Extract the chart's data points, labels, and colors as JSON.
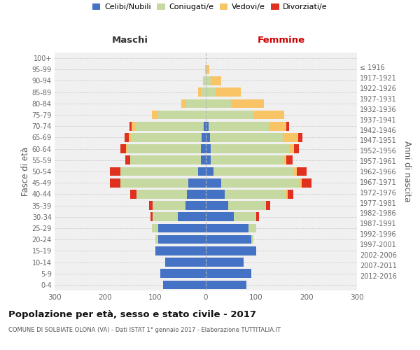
{
  "age_groups": [
    "0-4",
    "5-9",
    "10-14",
    "15-19",
    "20-24",
    "25-29",
    "30-34",
    "35-39",
    "40-44",
    "45-49",
    "50-54",
    "55-59",
    "60-64",
    "65-69",
    "70-74",
    "75-79",
    "80-84",
    "85-89",
    "90-94",
    "95-99",
    "100+"
  ],
  "birth_years": [
    "2012-2016",
    "2007-2011",
    "2002-2006",
    "1997-2001",
    "1992-1996",
    "1987-1991",
    "1982-1986",
    "1977-1981",
    "1972-1976",
    "1967-1971",
    "1962-1966",
    "1957-1961",
    "1952-1956",
    "1947-1951",
    "1942-1946",
    "1937-1941",
    "1932-1936",
    "1927-1931",
    "1922-1926",
    "1917-1921",
    "≤ 1916"
  ],
  "males": {
    "celibi": [
      85,
      90,
      80,
      100,
      95,
      95,
      55,
      40,
      38,
      35,
      15,
      10,
      10,
      8,
      4,
      0,
      0,
      0,
      0,
      0,
      0
    ],
    "coniugati": [
      0,
      0,
      0,
      0,
      5,
      12,
      50,
      65,
      100,
      135,
      155,
      140,
      145,
      140,
      135,
      95,
      40,
      10,
      5,
      2,
      0
    ],
    "vedovi": [
      0,
      0,
      0,
      0,
      0,
      0,
      0,
      0,
      0,
      0,
      0,
      0,
      3,
      5,
      8,
      12,
      8,
      5,
      0,
      0,
      0
    ],
    "divorziati": [
      0,
      0,
      0,
      0,
      0,
      0,
      5,
      8,
      12,
      20,
      20,
      10,
      12,
      8,
      5,
      0,
      0,
      0,
      0,
      0,
      0
    ]
  },
  "females": {
    "nubili": [
      80,
      90,
      75,
      100,
      90,
      85,
      55,
      45,
      38,
      30,
      15,
      10,
      10,
      8,
      5,
      0,
      0,
      0,
      0,
      0,
      0
    ],
    "coniugate": [
      0,
      0,
      0,
      0,
      5,
      15,
      45,
      75,
      120,
      155,
      160,
      145,
      155,
      145,
      120,
      95,
      50,
      20,
      10,
      2,
      0
    ],
    "vedove": [
      0,
      0,
      0,
      0,
      0,
      0,
      0,
      0,
      5,
      5,
      5,
      5,
      10,
      30,
      35,
      60,
      65,
      50,
      20,
      5,
      0
    ],
    "divorziate": [
      0,
      0,
      0,
      0,
      0,
      0,
      5,
      8,
      10,
      20,
      20,
      12,
      10,
      8,
      5,
      0,
      0,
      0,
      0,
      0,
      0
    ]
  },
  "color_celibi": "#4472c4",
  "color_coniugati": "#c6d9a0",
  "color_vedovi": "#f9c466",
  "color_divorziati": "#e03020",
  "xlim": [
    -300,
    300
  ],
  "title": "Popolazione per età, sesso e stato civile - 2017",
  "subtitle": "COMUNE DI SOLBIATE OLONA (VA) - Dati ISTAT 1° gennaio 2017 - Elaborazione TUTTITALIA.IT",
  "ylabel_left": "Fasce di età",
  "ylabel_right": "Anni di nascita",
  "xlabel_left": "Maschi",
  "xlabel_right": "Femmine",
  "bg_color": "#f0f0f0",
  "legend_marker_size": 10
}
